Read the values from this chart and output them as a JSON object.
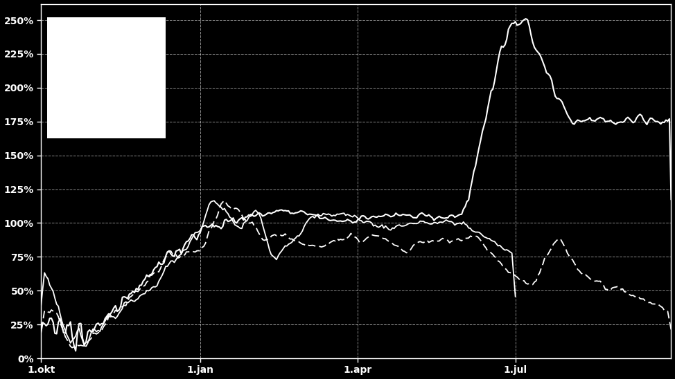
{
  "background_color": "#000000",
  "axes_color": "#000000",
  "text_color": "#ffffff",
  "grid_color": "#ffffff",
  "line_color": "#ffffff",
  "yticks": [
    0,
    25,
    50,
    75,
    100,
    125,
    150,
    175,
    200,
    225,
    250
  ],
  "ytick_labels": [
    "0%",
    "25%",
    "50%",
    "75%",
    "100%",
    "125%",
    "150%",
    "175%",
    "200%",
    "225%",
    "250%"
  ],
  "xtick_labels": [
    "1.okt",
    "1.jan",
    "1.apr",
    "1.jul"
  ],
  "ylim": [
    0,
    262
  ],
  "legend_box_color": "#ffffff",
  "n_days": 365
}
